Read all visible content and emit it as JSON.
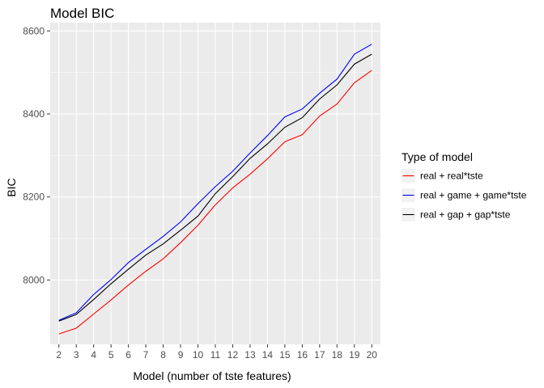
{
  "chart_data": {
    "type": "line",
    "title": "Model BIC",
    "xlabel": "Model (number of tste features)",
    "ylabel": "BIC",
    "x": [
      2,
      3,
      4,
      5,
      6,
      7,
      8,
      9,
      10,
      11,
      12,
      13,
      14,
      15,
      16,
      17,
      18,
      19,
      20
    ],
    "xlim": [
      1.5,
      20.5
    ],
    "ylim": [
      7845,
      8620
    ],
    "yticks": [
      8000,
      8200,
      8400,
      8600
    ],
    "grid": true,
    "legend": {
      "title": "Type of model",
      "position": "right"
    },
    "series": [
      {
        "name": "real + real*tste",
        "color": "#ff0000",
        "values": [
          7870,
          7884,
          7918,
          7952,
          7988,
          8021,
          8051,
          8090,
          8132,
          8181,
          8222,
          8255,
          8292,
          8333,
          8350,
          8395,
          8424,
          8475,
          8505
        ]
      },
      {
        "name": "real + game + game*tste",
        "color": "#0000ff",
        "values": [
          7903,
          7921,
          7965,
          8001,
          8042,
          8074,
          8105,
          8140,
          8184,
          8225,
          8262,
          8306,
          8348,
          8393,
          8412,
          8450,
          8484,
          8544,
          8568
        ]
      },
      {
        "name": "real + gap + gap*tste",
        "color": "#000000",
        "values": [
          7901,
          7917,
          7953,
          7991,
          8026,
          8060,
          8087,
          8120,
          8154,
          8208,
          8249,
          8293,
          8328,
          8368,
          8391,
          8436,
          8470,
          8520,
          8544
        ]
      }
    ]
  }
}
